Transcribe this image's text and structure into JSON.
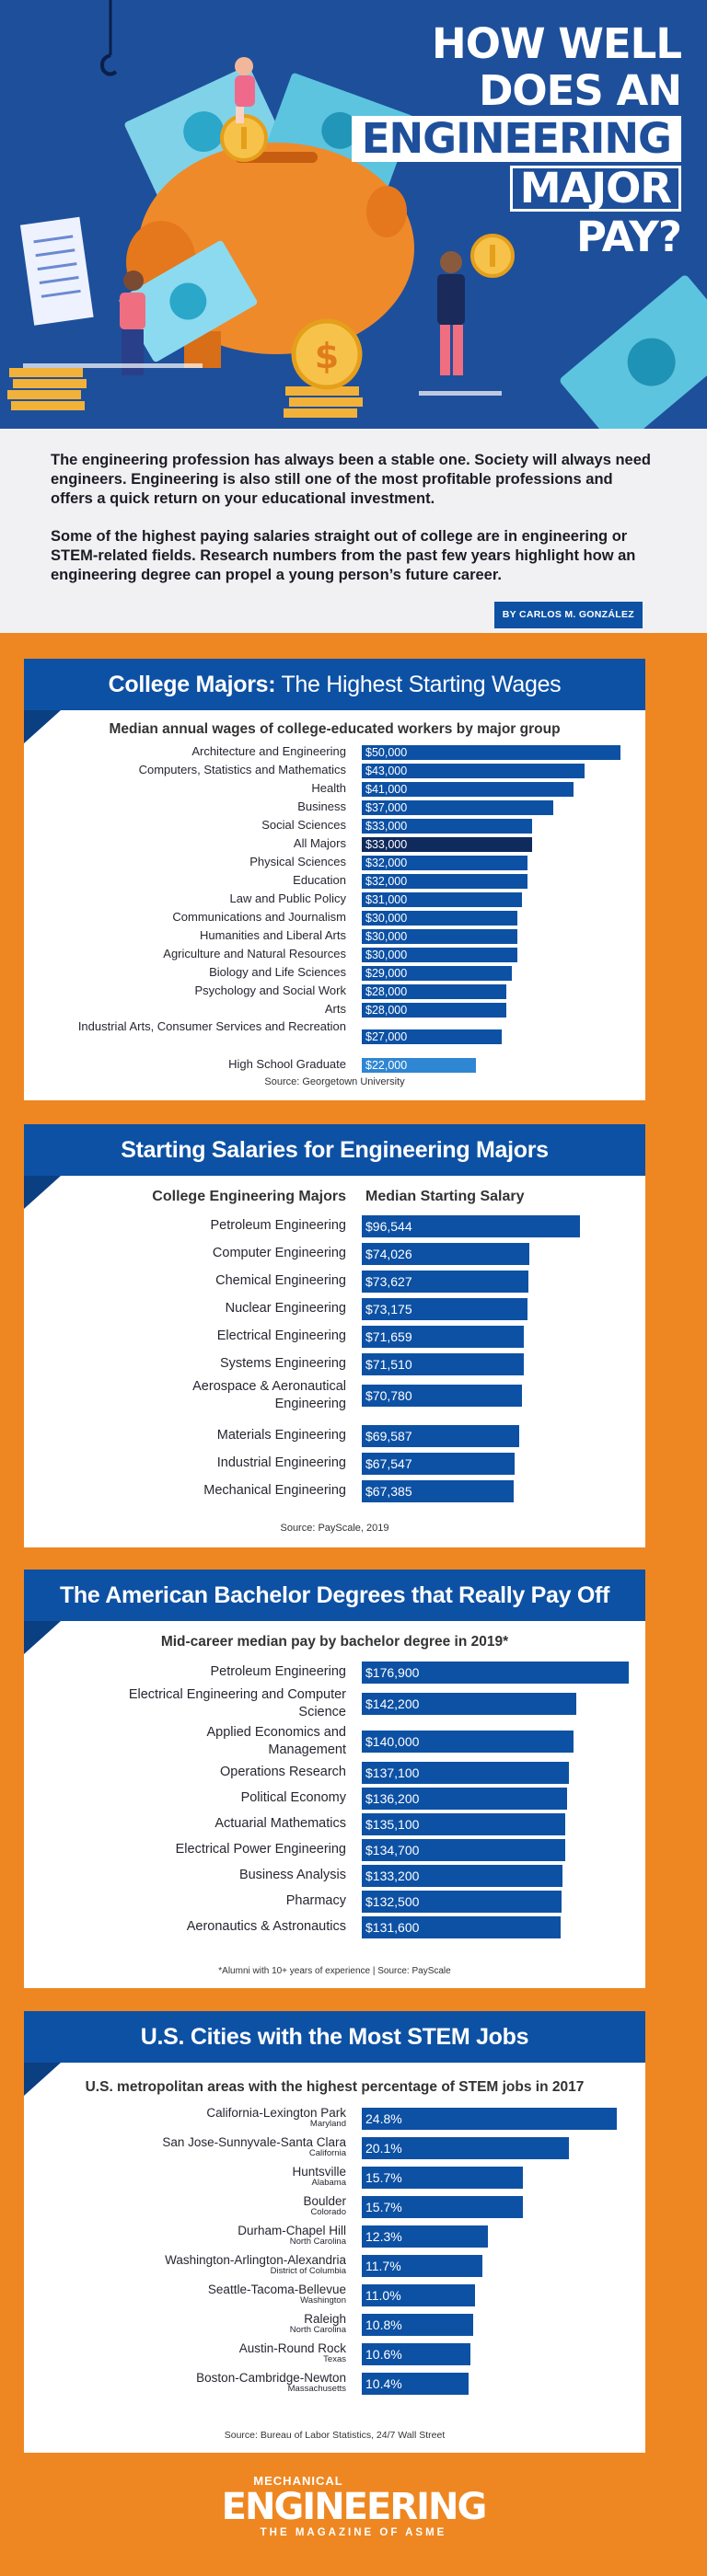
{
  "hero": {
    "title_l1": "HOW WELL",
    "title_l2": "DOES AN",
    "title_l3": "ENGINEERING",
    "title_l4": "MAJOR",
    "title_l5": "PAY?"
  },
  "intro": {
    "p1": "The engineering profession has always been a stable one. Society will always need engineers. Engineering is also still one of the most profitable professions and offers a quick return on your educational investment.",
    "p2": "Some of the highest paying salaries straight out of college are in engineering or STEM-related fields. Research numbers from the past few years highlight how an engineering degree can propel a young person’s future career.",
    "byline": "BY CARLOS M. GONZÁLEZ"
  },
  "colors": {
    "bar": "#0d51a4",
    "highlight": "#0f2a5c",
    "light": "#2f86d2",
    "orange": "#ee8722",
    "hero_bg": "#1e4f9b"
  },
  "section1": {
    "title_bold": "College Majors:",
    "title_rest": " The Highest Starting Wages",
    "subtitle": "Median annual wages of college-educated workers by major group",
    "source": "Source: Georgetown University",
    "chart_data": {
      "type": "bar",
      "orientation": "horizontal",
      "categories": [
        "Architecture and Engineering",
        "Computers, Statistics and Mathematics",
        "Health",
        "Business",
        "Social Sciences",
        "All Majors",
        "Physical Sciences",
        "Education",
        "Law and Public Policy",
        "Communications and Journalism",
        "Humanities and Liberal Arts",
        "Agriculture and Natural Resources",
        "Biology and Life Sciences",
        "Psychology and Social Work",
        "Arts",
        "Industrial Arts, Consumer Services and Recreation",
        "High School Graduate"
      ],
      "values": [
        50000,
        43000,
        41000,
        37000,
        33000,
        33000,
        32000,
        32000,
        31000,
        30000,
        30000,
        30000,
        29000,
        28000,
        28000,
        27000,
        22000
      ],
      "labels": [
        "$50,000",
        "$43,000",
        "$41,000",
        "$37,000",
        "$33,000",
        "$33,000",
        "$32,000",
        "$32,000",
        "$31,000",
        "$30,000",
        "$30,000",
        "$30,000",
        "$29,000",
        "$28,000",
        "$28,000",
        "$27,000",
        "$22,000"
      ]
    }
  },
  "section2": {
    "title": "Starting Salaries for Engineering Majors",
    "col1": "College Engineering Majors",
    "col2": "Median Starting Salary",
    "source": "Source: PayScale, 2019",
    "chart_data": {
      "type": "bar",
      "orientation": "horizontal",
      "categories": [
        "Petroleum Engineering",
        "Computer Engineering",
        "Chemical Engineering",
        "Nuclear Engineering",
        "Electrical Engineering",
        "Systems Engineering",
        "Aerospace & Aeronautical Engineering",
        "Materials Engineering",
        "Industrial Engineering",
        "Mechanical Engineering"
      ],
      "values": [
        96544,
        74026,
        73627,
        73175,
        71659,
        71510,
        70780,
        69587,
        67547,
        67385
      ],
      "labels": [
        "$96,544",
        "$74,026",
        "$73,627",
        "$73,175",
        "$71,659",
        "$71,510",
        "$70,780",
        "$69,587",
        "$67,547",
        "$67,385"
      ]
    }
  },
  "section3": {
    "title": "The American Bachelor Degrees that Really Pay Off",
    "subtitle": "Mid-career median pay by bachelor degree in 2019*",
    "source": "*Alumni with 10+ years of experience  |  Source: PayScale",
    "chart_data": {
      "type": "bar",
      "orientation": "horizontal",
      "categories": [
        "Petroleum Engineering",
        "Electrical Engineering and Computer Science",
        "Applied Economics and Management",
        "Operations Research",
        "Political Economy",
        "Actuarial Mathematics",
        "Electrical Power Engineering",
        "Business Analysis",
        "Pharmacy",
        "Aeronautics & Astronautics"
      ],
      "values": [
        176900,
        142200,
        140000,
        137100,
        136200,
        135100,
        134700,
        133200,
        132500,
        131600
      ],
      "labels": [
        "$176,900",
        "$142,200",
        "$140,000",
        "$137,100",
        "$136,200",
        "$135,100",
        "$134,700",
        "$133,200",
        "$132,500",
        "$131,600"
      ]
    }
  },
  "section4": {
    "title": "U.S. Cities with the Most STEM Jobs",
    "subtitle": "U.S. metropolitan areas with the highest percentage of STEM jobs in 2017",
    "source": "Source: Bureau of Labor Statistics, 24/7 Wall Street",
    "chart_data": {
      "type": "bar",
      "orientation": "horizontal",
      "categories": [
        "California-Lexington Park",
        "San Jose-Sunnyvale-Santa Clara",
        "Huntsville",
        "Boulder",
        "Durham-Chapel Hill",
        "Washington-Arlington-Alexandria",
        "Seattle-Tacoma-Bellevue",
        "Raleigh",
        "Austin-Round Rock",
        "Boston-Cambridge-Newton"
      ],
      "states": [
        "Maryland",
        "California",
        "Alabama",
        "Colorado",
        "North Carolina",
        "District of Columbia",
        "Washington",
        "North Carolina",
        "Texas",
        "Massachusetts"
      ],
      "values": [
        24.8,
        20.1,
        15.7,
        15.7,
        12.3,
        11.7,
        11.0,
        10.8,
        10.6,
        10.4
      ],
      "labels": [
        "24.8%",
        "20.1%",
        "15.7%",
        "15.7%",
        "12.3%",
        "11.7%",
        "11.0%",
        "10.8%",
        "10.6%",
        "10.4%"
      ]
    }
  },
  "logo": {
    "line1": "MECHANICAL",
    "line2": "ENGINEERING",
    "line3": "THE MAGAZINE OF ASME"
  }
}
